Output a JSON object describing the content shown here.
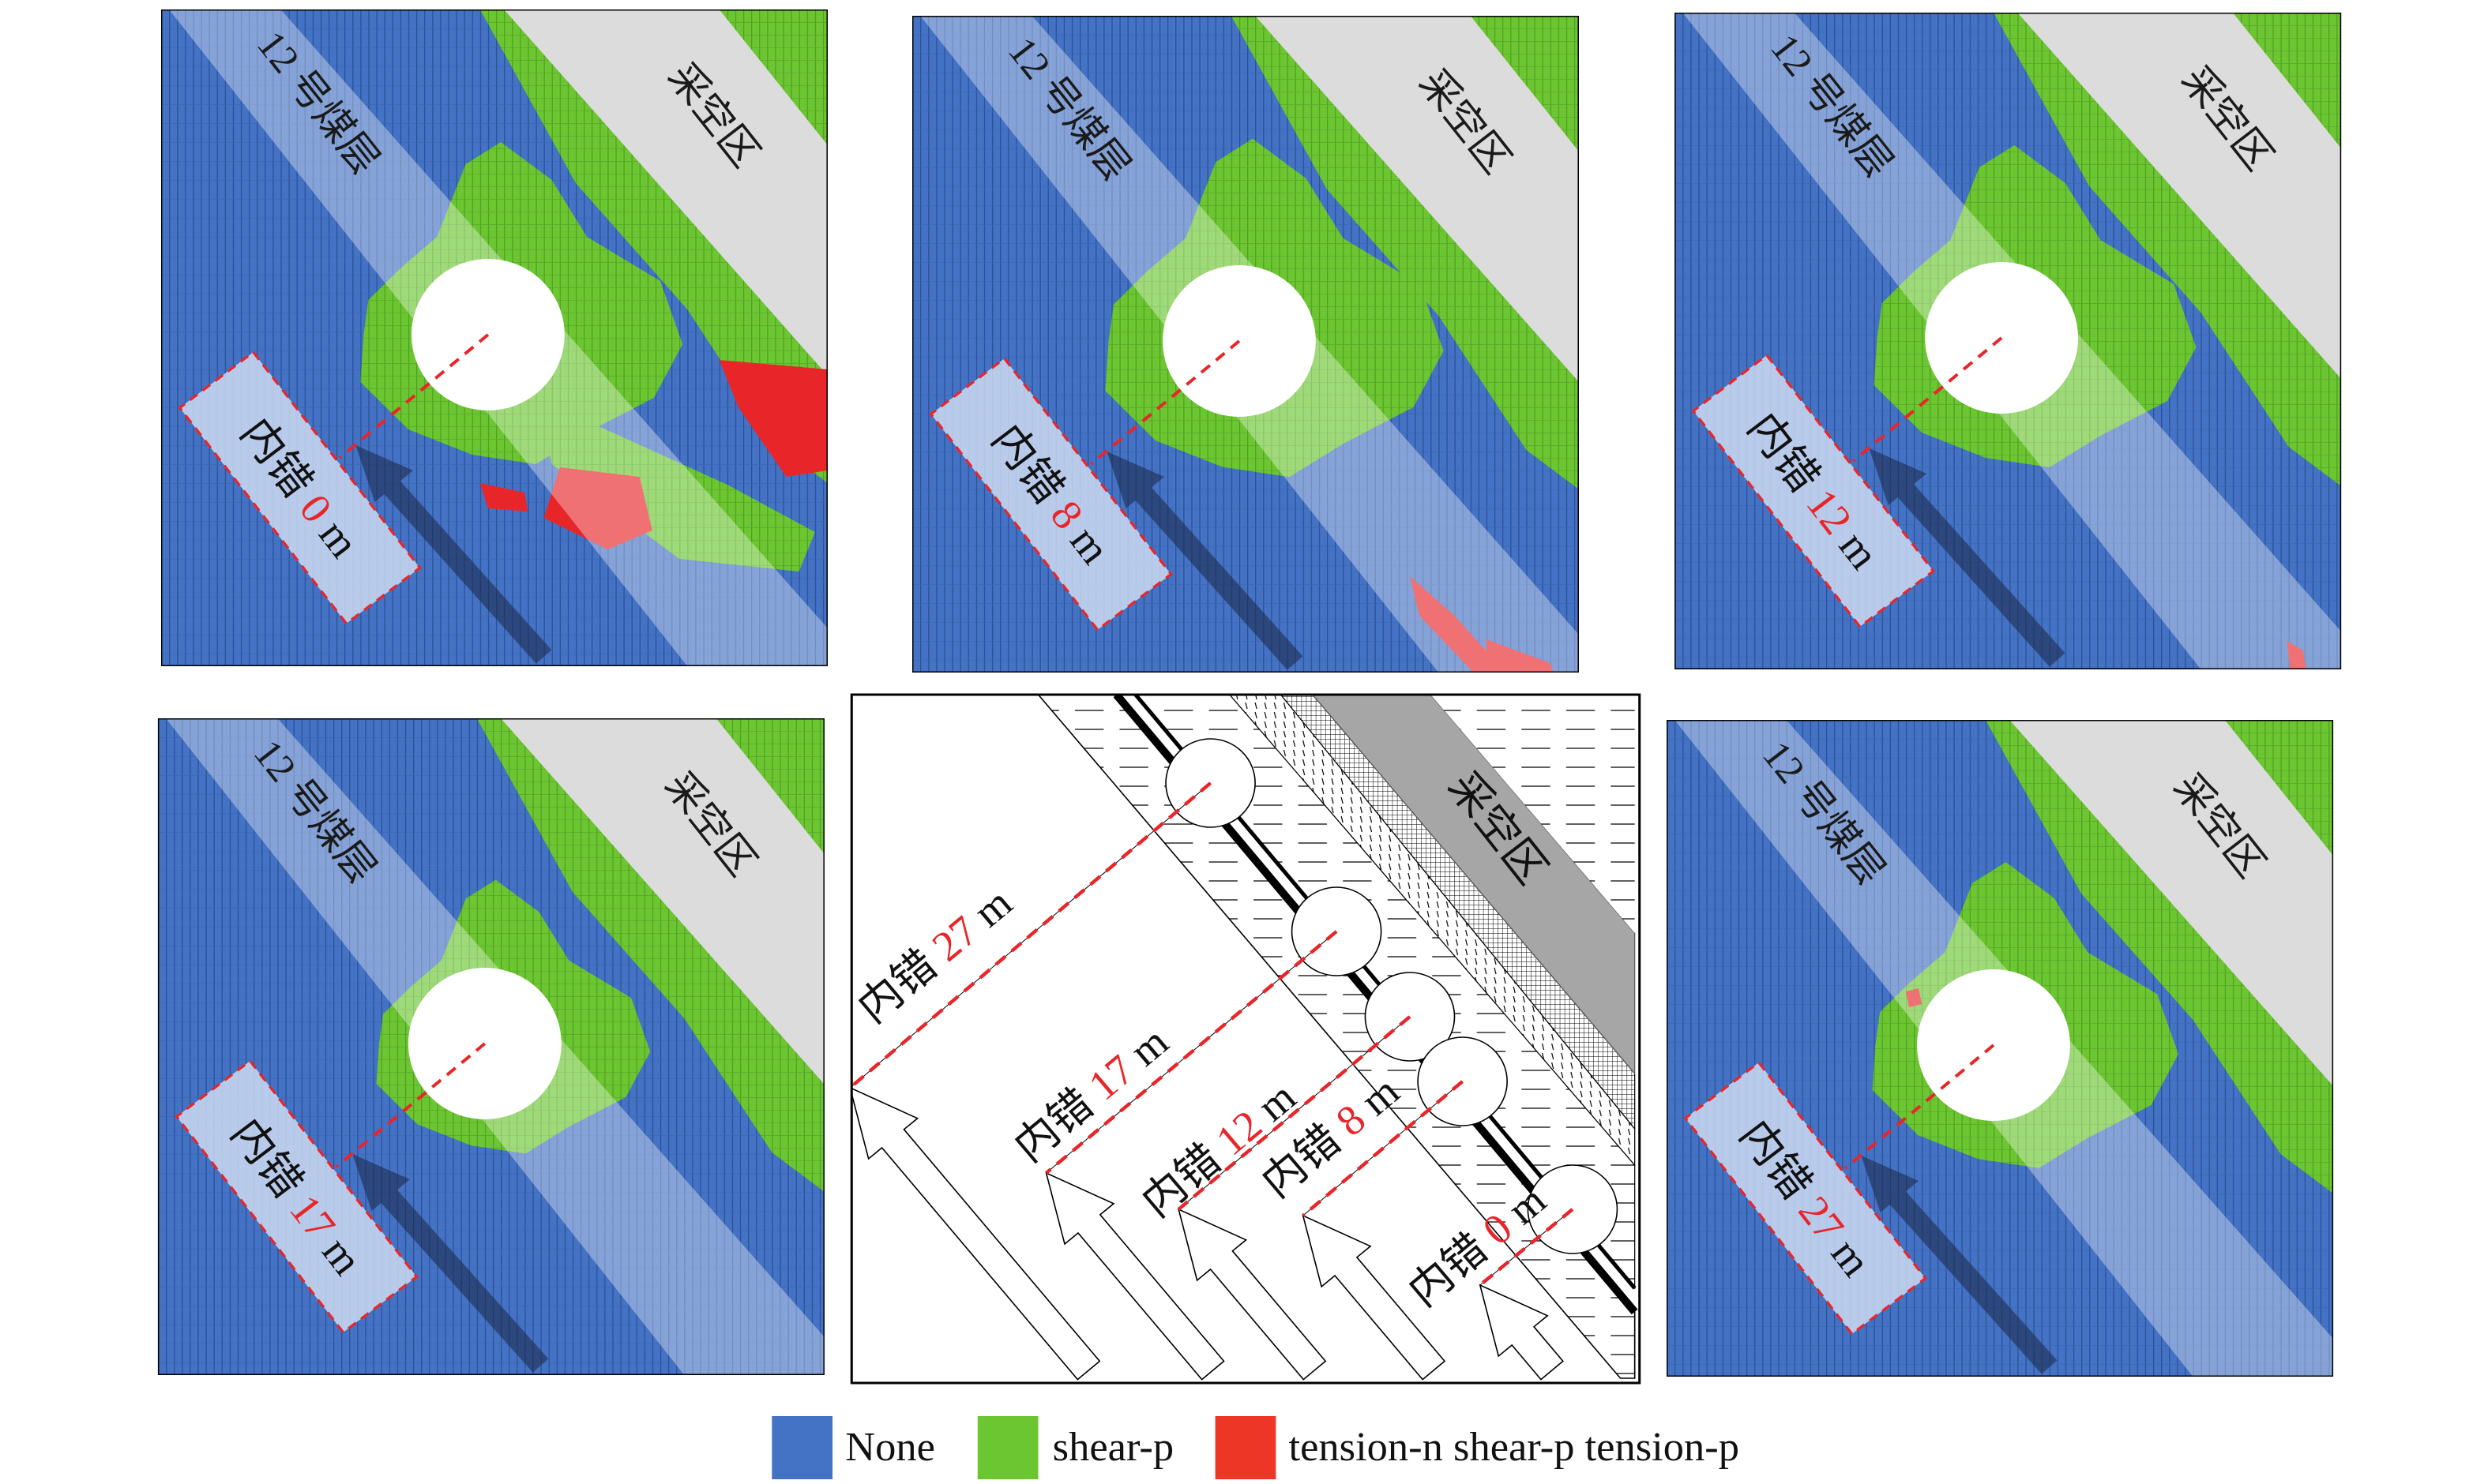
{
  "panels": [
    {
      "id": "0",
      "seam_label": "12 号煤层",
      "gob_label": "采空区",
      "label_prefix": "内错",
      "offset": "0",
      "unit": "m"
    },
    {
      "id": "8",
      "seam_label": "12 号煤层",
      "gob_label": "采空区",
      "label_prefix": "内错",
      "offset": "8",
      "unit": "m"
    },
    {
      "id": "12",
      "seam_label": "12 号煤层",
      "gob_label": "采空区",
      "label_prefix": "内错",
      "offset": "12",
      "unit": "m"
    },
    {
      "id": "17",
      "seam_label": "12 号煤层",
      "gob_label": "采空区",
      "label_prefix": "内错",
      "offset": "17",
      "unit": "m"
    },
    {
      "id": "27",
      "seam_label": "12 号煤层",
      "gob_label": "采空区",
      "label_prefix": "内错",
      "offset": "27",
      "unit": "m"
    }
  ],
  "schematic": {
    "gob_label": "采空区",
    "labels": [
      {
        "prefix": "内错",
        "offset": "27",
        "unit": "m"
      },
      {
        "prefix": "内错",
        "offset": "17",
        "unit": "m"
      },
      {
        "prefix": "内错",
        "offset": "12",
        "unit": "m"
      },
      {
        "prefix": "内错",
        "offset": "8",
        "unit": "m"
      },
      {
        "prefix": "内错",
        "offset": "0",
        "unit": "m"
      }
    ]
  },
  "legend": [
    {
      "label": "None",
      "color": "#4472c4"
    },
    {
      "label": "shear-p",
      "color": "#6cc631"
    },
    {
      "label": "tension-n shear-p tension-p",
      "color": "#ee3626"
    }
  ],
  "colors": {
    "offset_highlight": "#e8262a",
    "gob": "#dcdcdc",
    "schematic_gob": "#a6a6a6"
  }
}
